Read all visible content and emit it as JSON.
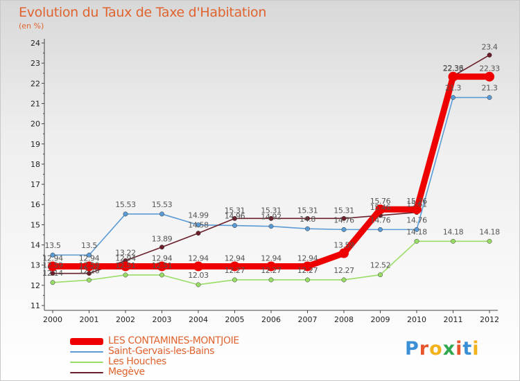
{
  "title": "Evolution du Taux de Taxe d'Habitation",
  "unit_label": "(en %)",
  "logo_text": "Proxiti",
  "logo_colors": [
    "#3a8fd6",
    "#e8542b",
    "#f2b21b",
    "#2fa84f",
    "#e8542b",
    "#3a8fd6",
    "#f2b21b"
  ],
  "chart_data": {
    "type": "line",
    "title": "Evolution du Taux de Taxe d'Habitation",
    "ylabel": "(en %)",
    "xlabel": "",
    "ylim": [
      11,
      24
    ],
    "yticks": [
      11,
      12,
      13,
      14,
      15,
      16,
      17,
      18,
      19,
      20,
      21,
      22,
      23,
      24
    ],
    "grid": false,
    "legend_position": "bottom-left",
    "x": [
      "2000",
      "2001",
      "2002",
      "2003",
      "2004",
      "2005",
      "2006",
      "2007",
      "2008",
      "2009",
      "2010",
      "2011",
      "2012"
    ],
    "series": [
      {
        "name": "LES CONTAMINES-MONTJOIE",
        "color": "#ee0000",
        "emphasis": true,
        "values": [
          12.94,
          12.94,
          12.94,
          12.94,
          12.94,
          12.94,
          12.94,
          12.94,
          13.59,
          15.76,
          15.76,
          22.33,
          22.33
        ],
        "labels": [
          "12.94",
          "12.94",
          "12.94",
          "12.94",
          "12.94",
          "12.94",
          "12.94",
          "12.94",
          "13.59",
          "15.76",
          "15.76",
          "22.33",
          "22.33"
        ]
      },
      {
        "name": "Saint-Gervais-les-Bains",
        "color": "#5b9bd5",
        "values": [
          13.5,
          13.5,
          15.53,
          15.53,
          14.99,
          14.96,
          14.92,
          14.8,
          14.76,
          14.76,
          14.76,
          21.3,
          21.3
        ],
        "labels": [
          "13.5",
          "13.5",
          "15.53",
          "15.53",
          "14.99",
          "14.96",
          "14.92",
          "14.8",
          "14.76",
          "14.76",
          "14.76",
          "21.3",
          "21.3"
        ]
      },
      {
        "name": "Les Houches",
        "color": "#99dd66",
        "values": [
          12.14,
          12.26,
          12.51,
          12.51,
          12.03,
          12.27,
          12.27,
          12.27,
          12.27,
          12.52,
          14.18,
          14.18,
          14.18
        ],
        "labels": [
          "12.14",
          "12.26",
          "12.51",
          "12.51",
          "12.03",
          "12.27",
          "12.27",
          "12.27",
          "12.27",
          "12.52",
          "14.18",
          "14.18",
          "14.18"
        ]
      },
      {
        "name": "Megève",
        "color": "#6b1f2a",
        "values": [
          12.59,
          12.59,
          13.22,
          13.89,
          14.58,
          15.31,
          15.31,
          15.31,
          15.31,
          15.46,
          15.61,
          22.36,
          23.4
        ],
        "labels": [
          "12.59",
          "12.59",
          "13.22",
          "13.89",
          "14.58",
          "15.31",
          "15.31",
          "15.31",
          "15.31",
          "15.46",
          "15.61",
          "22.36",
          "23.4"
        ]
      }
    ]
  }
}
